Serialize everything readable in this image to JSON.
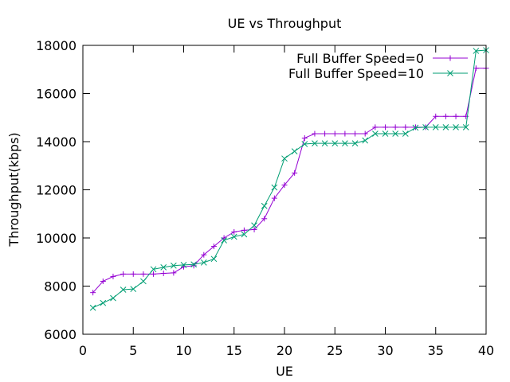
{
  "chart_data": {
    "type": "line",
    "title": "UE vs Throughput",
    "xlabel": "UE",
    "ylabel": "Throughput(kbps)",
    "xlim": [
      0,
      40
    ],
    "ylim": [
      6000,
      18000
    ],
    "xticks": [
      0,
      5,
      10,
      15,
      20,
      25,
      30,
      35,
      40
    ],
    "yticks": [
      6000,
      8000,
      10000,
      12000,
      14000,
      16000,
      18000
    ],
    "grid": false,
    "legend_position": "top-right",
    "x": [
      1,
      2,
      3,
      4,
      5,
      6,
      7,
      8,
      9,
      10,
      11,
      12,
      13,
      14,
      15,
      16,
      17,
      18,
      19,
      20,
      21,
      22,
      23,
      24,
      25,
      26,
      27,
      28,
      29,
      30,
      31,
      32,
      33,
      34,
      35,
      36,
      37,
      38,
      39,
      40
    ],
    "series": [
      {
        "name": "Full Buffer Speed=0",
        "color": "#9400d3",
        "marker": "plus",
        "values": [
          7730,
          8200,
          8400,
          8500,
          8500,
          8500,
          8500,
          8530,
          8550,
          8800,
          8850,
          9300,
          9650,
          10000,
          10250,
          10320,
          10350,
          10800,
          11650,
          12200,
          12700,
          14150,
          14330,
          14330,
          14330,
          14330,
          14330,
          14330,
          14600,
          14600,
          14600,
          14600,
          14600,
          14600,
          15050,
          15050,
          15050,
          15050,
          17050,
          17050
        ]
      },
      {
        "name": "Full Buffer Speed=10",
        "color": "#009e73",
        "marker": "x",
        "values": [
          7100,
          7300,
          7500,
          7850,
          7880,
          8200,
          8700,
          8780,
          8850,
          8880,
          8900,
          8980,
          9130,
          9900,
          10050,
          10150,
          10520,
          11330,
          12100,
          13300,
          13600,
          13900,
          13930,
          13930,
          13930,
          13930,
          13930,
          14050,
          14330,
          14330,
          14330,
          14330,
          14580,
          14600,
          14600,
          14600,
          14600,
          14600,
          17770,
          17800
        ]
      }
    ]
  }
}
